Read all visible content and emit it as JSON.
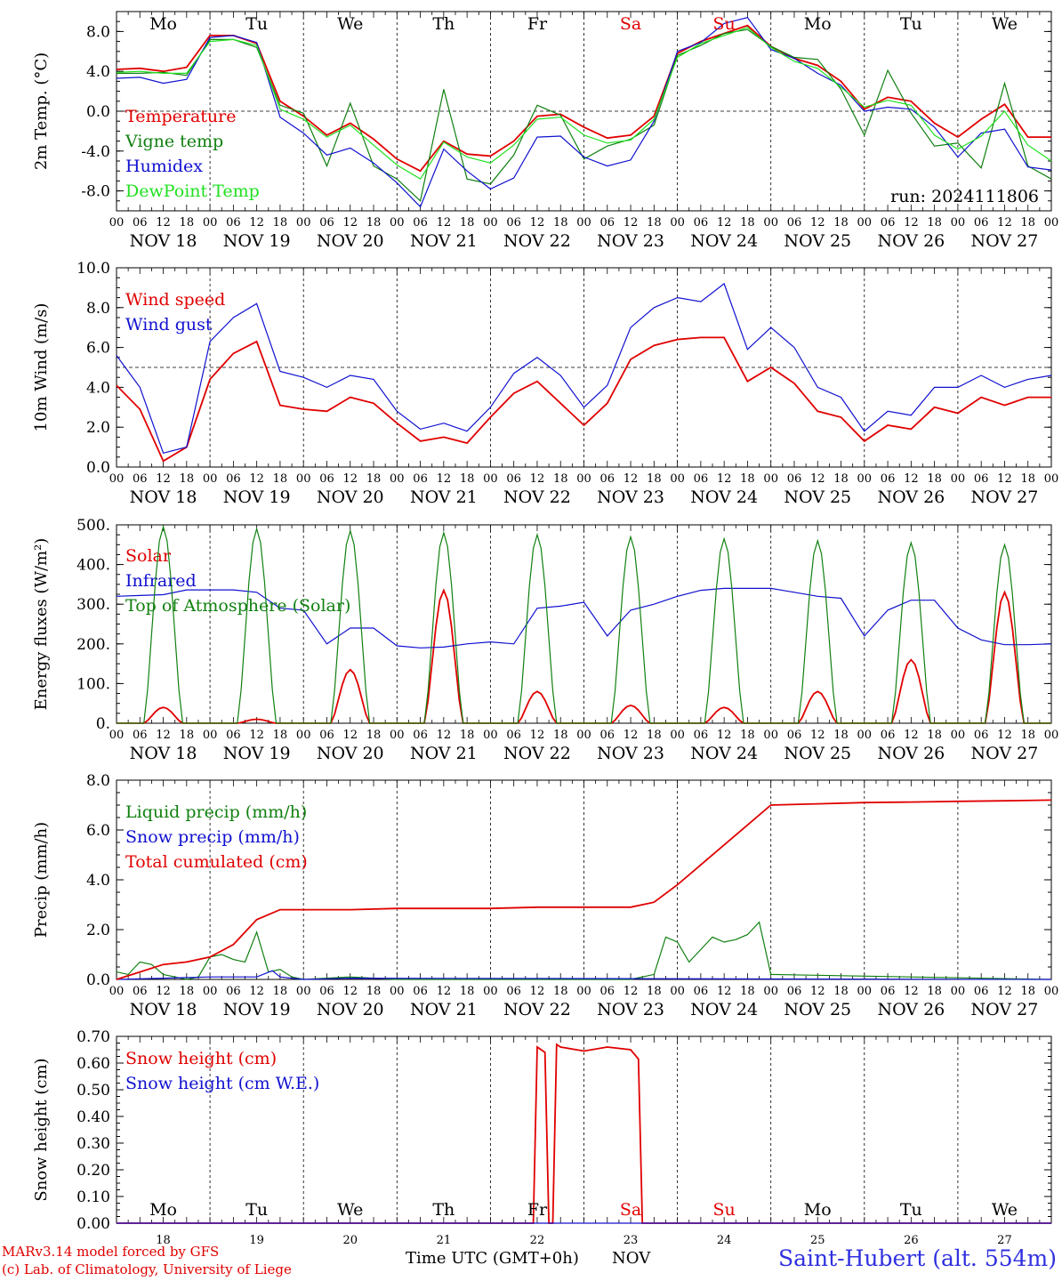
{
  "footer": {
    "model_line": "MARv3.14 model forced by GFS",
    "copyright_line": "(c) Lab. of Climatology, University of Liege",
    "time_axis_label": "Time UTC (GMT+0h)",
    "month_label": "NOV",
    "station": "Saint-Hubert (alt. 554m)"
  },
  "run_label": "run: 2024111806",
  "days": {
    "names": [
      "Mo",
      "Tu",
      "We",
      "Th",
      "Fr",
      "Sa",
      "Su",
      "Mo",
      "Tu",
      "We"
    ],
    "weekend_color": "#e00000",
    "weekend_index": [
      5,
      6
    ],
    "dates": [
      "NOV 18",
      "NOV 19",
      "NOV 20",
      "NOV 21",
      "NOV 22",
      "NOV 23",
      "NOV 24",
      "NOV 25",
      "NOV 26",
      "NOV 27"
    ],
    "bottom_numbers": [
      "18",
      "19",
      "20",
      "21",
      "22",
      "23",
      "24",
      "25",
      "26",
      "27"
    ],
    "hour_ticks": [
      "00",
      "06",
      "12",
      "18"
    ],
    "final_tick": "00"
  },
  "colors": {
    "red": "#e00000",
    "green": "#108010",
    "blue": "#1010d0",
    "lightgreen": "#20e020"
  },
  "chart_data": [
    {
      "type": "line",
      "ylabel": "2m Temp. (°C)",
      "ylim": [
        -10,
        10
      ],
      "yticks": [
        "8.0",
        "4.0",
        "0.0",
        "-4.0",
        "-8.0"
      ],
      "ytick_values": [
        8,
        4,
        0,
        -4,
        -8
      ],
      "reference_line": 0,
      "x_unit": "hours since NOV 18 00 UTC",
      "series": [
        {
          "name": "Temperature",
          "color": "red",
          "x": [
            0,
            6,
            12,
            18,
            24,
            30,
            36,
            42,
            48,
            54,
            60,
            66,
            72,
            78,
            84,
            90,
            96,
            102,
            108,
            114,
            120,
            126,
            132,
            138,
            144,
            150,
            156,
            162,
            168,
            174,
            180,
            186,
            192,
            198,
            204,
            210,
            216,
            222,
            228,
            234,
            240
          ],
          "values": [
            4.2,
            4.3,
            4.0,
            4.4,
            7.6,
            7.6,
            6.8,
            1.0,
            -0.5,
            -2.4,
            -1.2,
            -2.8,
            -4.8,
            -6.0,
            -3.0,
            -4.3,
            -4.5,
            -3.0,
            -0.5,
            -0.3,
            -1.6,
            -2.7,
            -2.4,
            -0.5,
            5.8,
            7.0,
            7.8,
            8.6,
            6.5,
            5.3,
            4.6,
            3.0,
            0.2,
            1.4,
            1.0,
            -1.2,
            -2.6,
            -0.8,
            0.7,
            -2.6,
            -2.6
          ]
        },
        {
          "name": "Vigne temp",
          "color": "green",
          "x": [
            0,
            6,
            12,
            18,
            24,
            30,
            36,
            42,
            48,
            54,
            60,
            66,
            72,
            78,
            84,
            90,
            96,
            102,
            108,
            114,
            120,
            126,
            132,
            138,
            144,
            150,
            156,
            162,
            168,
            174,
            180,
            186,
            192,
            198,
            204,
            210,
            216,
            222,
            228,
            234,
            240
          ],
          "values": [
            3.8,
            3.8,
            3.9,
            3.6,
            7.2,
            7.2,
            6.4,
            0.6,
            -0.2,
            -5.5,
            0.8,
            -5.5,
            -6.8,
            -9.0,
            2.2,
            -6.8,
            -7.3,
            -4.4,
            0.6,
            -0.4,
            -4.8,
            -3.5,
            -2.8,
            -1.4,
            5.6,
            6.6,
            7.8,
            8.2,
            6.5,
            5.4,
            5.2,
            2.2,
            -2.4,
            4.1,
            -0.2,
            -3.5,
            -3.2,
            -5.7,
            2.8,
            -5.5,
            -6.8
          ]
        },
        {
          "name": "Humidex",
          "color": "blue",
          "x": [
            0,
            6,
            12,
            18,
            24,
            30,
            36,
            42,
            48,
            54,
            60,
            66,
            72,
            78,
            84,
            90,
            96,
            102,
            108,
            114,
            120,
            126,
            132,
            138,
            144,
            150,
            156,
            162,
            168,
            174,
            180,
            186,
            192,
            198,
            204,
            210,
            216,
            222,
            228,
            234,
            240
          ],
          "values": [
            3.3,
            3.4,
            2.8,
            3.2,
            7.4,
            7.6,
            6.9,
            -0.6,
            -2.2,
            -4.4,
            -3.7,
            -5.2,
            -7.2,
            -9.6,
            -3.8,
            -6.0,
            -7.8,
            -6.7,
            -2.6,
            -2.5,
            -4.6,
            -5.5,
            -4.9,
            -1.0,
            6.0,
            6.9,
            8.8,
            9.4,
            6.2,
            5.3,
            3.8,
            2.6,
            0.0,
            0.4,
            0.2,
            -1.6,
            -4.6,
            -2.2,
            -1.8,
            -5.6,
            -5.9
          ]
        },
        {
          "name": "DewPoint Temp",
          "color": "lightgreen",
          "x": [
            0,
            6,
            12,
            18,
            24,
            30,
            36,
            42,
            48,
            54,
            60,
            66,
            72,
            78,
            84,
            90,
            96,
            102,
            108,
            114,
            120,
            126,
            132,
            138,
            144,
            150,
            156,
            162,
            168,
            174,
            180,
            186,
            192,
            198,
            204,
            210,
            216,
            222,
            228,
            234,
            240
          ],
          "values": [
            3.9,
            4.0,
            3.8,
            3.8,
            7.0,
            7.2,
            6.6,
            0.2,
            -0.8,
            -2.6,
            -1.4,
            -3.4,
            -5.4,
            -6.8,
            -3.1,
            -4.6,
            -5.2,
            -3.4,
            -0.8,
            -0.6,
            -2.4,
            -3.2,
            -2.9,
            -0.8,
            5.4,
            6.8,
            7.6,
            8.4,
            6.4,
            5.0,
            4.3,
            2.4,
            0.4,
            1.1,
            0.6,
            -2.4,
            -3.8,
            -2.5,
            0.0,
            -3.4,
            -5.0
          ]
        }
      ]
    },
    {
      "type": "line",
      "ylabel": "10m Wind (m/s)",
      "ylim": [
        0,
        10
      ],
      "yticks": [
        "10.0",
        "8.0",
        "6.0",
        "4.0",
        "2.0",
        "0.0"
      ],
      "ytick_values": [
        10,
        8,
        6,
        4,
        2,
        0
      ],
      "reference_line": 5,
      "x_unit": "hours since NOV 18 00 UTC",
      "series": [
        {
          "name": "Wind speed",
          "color": "red",
          "x": [
            0,
            6,
            12,
            18,
            24,
            30,
            36,
            42,
            48,
            54,
            60,
            66,
            72,
            78,
            84,
            90,
            96,
            102,
            108,
            114,
            120,
            126,
            132,
            138,
            144,
            150,
            156,
            162,
            168,
            174,
            180,
            186,
            192,
            198,
            204,
            210,
            216,
            222,
            228,
            234,
            240
          ],
          "values": [
            4.1,
            2.9,
            0.3,
            1.0,
            4.4,
            5.7,
            6.3,
            3.1,
            2.9,
            2.8,
            3.5,
            3.2,
            2.2,
            1.3,
            1.5,
            1.2,
            2.5,
            3.7,
            4.3,
            3.2,
            2.1,
            3.2,
            5.4,
            6.1,
            6.4,
            6.5,
            6.5,
            4.3,
            5.0,
            4.2,
            2.8,
            2.5,
            1.3,
            2.1,
            1.9,
            3.0,
            2.7,
            3.5,
            3.1,
            3.5,
            3.5
          ]
        },
        {
          "name": "Wind gust",
          "color": "blue",
          "x": [
            0,
            6,
            12,
            18,
            24,
            30,
            36,
            42,
            48,
            54,
            60,
            66,
            72,
            78,
            84,
            90,
            96,
            102,
            108,
            114,
            120,
            126,
            132,
            138,
            144,
            150,
            156,
            162,
            168,
            174,
            180,
            186,
            192,
            198,
            204,
            210,
            216,
            222,
            228,
            234,
            240
          ],
          "values": [
            5.6,
            4.0,
            0.7,
            1.0,
            6.3,
            7.5,
            8.2,
            4.8,
            4.5,
            4.0,
            4.6,
            4.4,
            2.8,
            1.9,
            2.2,
            1.8,
            3.0,
            4.7,
            5.5,
            4.6,
            3.0,
            4.1,
            7.0,
            8.0,
            8.5,
            8.3,
            9.2,
            5.9,
            7.0,
            6.0,
            4.0,
            3.5,
            1.8,
            2.8,
            2.6,
            4.0,
            4.0,
            4.6,
            4.0,
            4.4,
            4.6
          ]
        }
      ]
    },
    {
      "type": "line",
      "ylabel": "Energy fluxes (W/m²)",
      "ylim": [
        0,
        500
      ],
      "yticks": [
        "500.",
        "400.",
        "300.",
        "200.",
        "100.",
        "0."
      ],
      "ytick_values": [
        500,
        400,
        300,
        200,
        100,
        0
      ],
      "x_unit": "hours since NOV 18 00 UTC",
      "series": [
        {
          "name": "Solar",
          "color": "red",
          "peaks": [
            40,
            10,
            135,
            335,
            80,
            45,
            40,
            80,
            160,
            330
          ],
          "peak_hour": 12,
          "half_width_hours": 5
        },
        {
          "name": "Infrared",
          "color": "blue",
          "x": [
            0,
            6,
            12,
            18,
            24,
            30,
            36,
            42,
            48,
            54,
            60,
            66,
            72,
            78,
            84,
            90,
            96,
            102,
            108,
            114,
            120,
            126,
            132,
            138,
            144,
            150,
            156,
            162,
            168,
            174,
            180,
            186,
            192,
            198,
            204,
            210,
            216,
            222,
            228,
            234,
            240
          ],
          "values": [
            320,
            322,
            324,
            336,
            336,
            336,
            330,
            290,
            285,
            200,
            240,
            240,
            195,
            190,
            192,
            200,
            205,
            200,
            290,
            295,
            305,
            220,
            285,
            300,
            320,
            335,
            340,
            340,
            340,
            330,
            320,
            315,
            220,
            285,
            310,
            310,
            240,
            210,
            198,
            198,
            200
          ]
        },
        {
          "name": "Top of Atmosphere (Solar)",
          "color": "green",
          "peaks": [
            495,
            490,
            485,
            480,
            475,
            470,
            465,
            460,
            455,
            450
          ],
          "peak_hour": 12,
          "half_width_hours": 5
        }
      ]
    },
    {
      "type": "line",
      "ylabel": "Precip (mm/h)",
      "ylim": [
        0,
        8
      ],
      "yticks": [
        "8.0",
        "6.0",
        "4.0",
        "2.0",
        "0.0"
      ],
      "ytick_values": [
        8,
        6,
        4,
        2,
        0
      ],
      "x_unit": "hours since NOV 18 00 UTC",
      "series": [
        {
          "name": "Liquid precip (mm/h)",
          "color": "green",
          "x": [
            0,
            3,
            6,
            9,
            12,
            15,
            18,
            21,
            24,
            27,
            30,
            33,
            36,
            39,
            42,
            45,
            48,
            60,
            72,
            84,
            96,
            108,
            120,
            132,
            138,
            141,
            144,
            147,
            150,
            153,
            156,
            159,
            162,
            165,
            168,
            240
          ],
          "values": [
            0.3,
            0.2,
            0.7,
            0.6,
            0.2,
            0.1,
            0.0,
            0.1,
            0.9,
            1.0,
            0.8,
            0.7,
            1.9,
            0.3,
            0.4,
            0.1,
            0.0,
            0.1,
            0.0,
            0.0,
            0.0,
            0.0,
            0.0,
            0.0,
            0.2,
            1.7,
            1.5,
            0.7,
            1.2,
            1.7,
            1.5,
            1.6,
            1.8,
            2.3,
            0.2,
            0.0
          ]
        },
        {
          "name": "Snow precip (mm/h)",
          "color": "blue",
          "x": [
            0,
            12,
            24,
            36,
            40,
            42,
            48,
            60,
            240
          ],
          "values": [
            0.0,
            0.05,
            0.1,
            0.1,
            0.35,
            0.1,
            0.0,
            0.05,
            0.0
          ]
        },
        {
          "name": "Total cumulated (cm)",
          "color": "red",
          "x": [
            0,
            6,
            12,
            18,
            24,
            30,
            36,
            42,
            48,
            60,
            72,
            84,
            96,
            108,
            120,
            132,
            138,
            144,
            150,
            156,
            162,
            168,
            180,
            192,
            204,
            216,
            228,
            240
          ],
          "values": [
            0.0,
            0.3,
            0.6,
            0.7,
            0.9,
            1.4,
            2.4,
            2.8,
            2.8,
            2.8,
            2.85,
            2.85,
            2.85,
            2.9,
            2.9,
            2.9,
            3.1,
            3.8,
            4.6,
            5.4,
            6.2,
            7.0,
            7.05,
            7.1,
            7.12,
            7.15,
            7.17,
            7.2
          ]
        }
      ]
    },
    {
      "type": "line",
      "ylabel": "Snow height (cm)",
      "ylim": [
        0,
        0.7
      ],
      "yticks": [
        "0.70",
        "0.60",
        "0.50",
        "0.40",
        "0.30",
        "0.20",
        "0.10",
        "0.00"
      ],
      "ytick_values": [
        0.7,
        0.6,
        0.5,
        0.4,
        0.3,
        0.2,
        0.1,
        0.0
      ],
      "x_unit": "hours since NOV 18 00 UTC",
      "series": [
        {
          "name": "Snow height (cm)",
          "color": "red",
          "x": [
            0,
            107,
            108,
            110,
            111,
            112,
            113,
            114,
            120,
            126,
            132,
            134,
            135,
            240
          ],
          "values": [
            0,
            0,
            0.66,
            0.64,
            0,
            0,
            0.67,
            0.66,
            0.645,
            0.66,
            0.65,
            0.615,
            0,
            0
          ]
        },
        {
          "name": "Snow height (cm W.E.)",
          "color": "blue",
          "x": [
            0,
            240
          ],
          "values": [
            0,
            0
          ]
        }
      ]
    }
  ]
}
